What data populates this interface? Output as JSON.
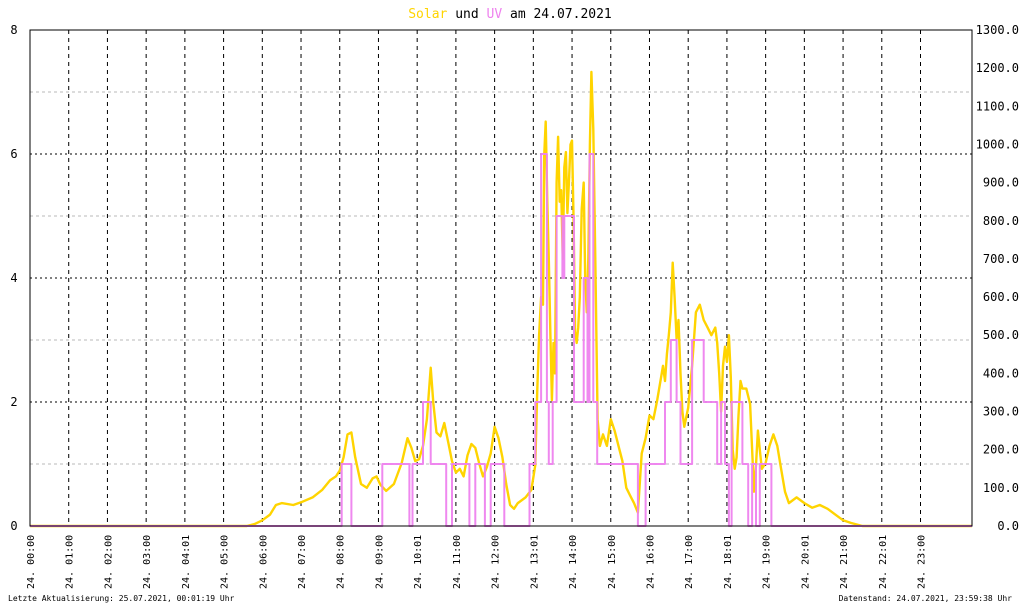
{
  "chart_data": {
    "type": "line",
    "title": {
      "part1": "Solar",
      "part2": " und ",
      "part3": "UV",
      "part4": " am 24.07.2021"
    },
    "colors": {
      "solar": "#ffd400",
      "uv": "#ee82ee",
      "grid_major": "#000000",
      "grid_minor": "#b8b8b8",
      "frame": "#000000"
    },
    "left_axis": {
      "min": 0,
      "max": 8,
      "ticks": [
        "0",
        "2",
        "4",
        "6",
        "8"
      ],
      "minor_step": 1
    },
    "right_axis": {
      "min": 0,
      "max": 1300,
      "ticks": [
        "0.0",
        "100.0",
        "200.0",
        "300.0",
        "400.0",
        "500.0",
        "600.0",
        "700.0",
        "800.0",
        "900.0",
        "1000.0",
        "1100.0",
        "1200.0",
        "1300.0"
      ]
    },
    "x_range_hours": [
      0,
      24.33
    ],
    "x_ticks": [
      {
        "h": 0,
        "label": "24. 00:00"
      },
      {
        "h": 1,
        "label": "24. 01:00"
      },
      {
        "h": 2,
        "label": "24. 02:00"
      },
      {
        "h": 3,
        "label": "24. 03:00"
      },
      {
        "h": 4,
        "label": "24. 04:01"
      },
      {
        "h": 5,
        "label": "24. 05:00"
      },
      {
        "h": 6,
        "label": "24. 06:00"
      },
      {
        "h": 7,
        "label": "24. 07:00"
      },
      {
        "h": 8,
        "label": "24. 08:00"
      },
      {
        "h": 9,
        "label": "24. 09:00"
      },
      {
        "h": 10,
        "label": "24. 10:01"
      },
      {
        "h": 11,
        "label": "24. 11:00"
      },
      {
        "h": 12,
        "label": "24. 12:00"
      },
      {
        "h": 13,
        "label": "24. 13:01"
      },
      {
        "h": 14,
        "label": "24. 14:00"
      },
      {
        "h": 15,
        "label": "24. 15:00"
      },
      {
        "h": 16,
        "label": "24. 16:00"
      },
      {
        "h": 17,
        "label": "24. 17:00"
      },
      {
        "h": 18,
        "label": "24. 18:01"
      },
      {
        "h": 19,
        "label": "24. 19:00"
      },
      {
        "h": 20,
        "label": "24. 20:01"
      },
      {
        "h": 21,
        "label": "24. 21:00"
      },
      {
        "h": 22,
        "label": "24. 22:01"
      },
      {
        "h": 23,
        "label": "24. 23:00"
      }
    ],
    "series": [
      {
        "name": "Solar",
        "axis": "right",
        "points": [
          [
            0,
            0
          ],
          [
            5.6,
            0
          ],
          [
            5.8,
            5
          ],
          [
            6.0,
            15
          ],
          [
            6.2,
            30
          ],
          [
            6.35,
            55
          ],
          [
            6.5,
            60
          ],
          [
            6.8,
            55
          ],
          [
            7.0,
            62
          ],
          [
            7.3,
            75
          ],
          [
            7.55,
            95
          ],
          [
            7.75,
            120
          ],
          [
            7.9,
            130
          ],
          [
            8.0,
            145
          ],
          [
            8.1,
            180
          ],
          [
            8.2,
            240
          ],
          [
            8.3,
            245
          ],
          [
            8.4,
            180
          ],
          [
            8.55,
            110
          ],
          [
            8.7,
            100
          ],
          [
            8.85,
            125
          ],
          [
            8.95,
            130
          ],
          [
            9.05,
            108
          ],
          [
            9.2,
            92
          ],
          [
            9.4,
            110
          ],
          [
            9.6,
            165
          ],
          [
            9.75,
            230
          ],
          [
            9.85,
            205
          ],
          [
            9.95,
            170
          ],
          [
            10.05,
            175
          ],
          [
            10.15,
            210
          ],
          [
            10.25,
            280
          ],
          [
            10.35,
            415
          ],
          [
            10.42,
            320
          ],
          [
            10.5,
            245
          ],
          [
            10.6,
            235
          ],
          [
            10.7,
            270
          ],
          [
            10.8,
            220
          ],
          [
            10.9,
            170
          ],
          [
            11.0,
            140
          ],
          [
            11.1,
            150
          ],
          [
            11.2,
            130
          ],
          [
            11.3,
            185
          ],
          [
            11.4,
            215
          ],
          [
            11.5,
            205
          ],
          [
            11.6,
            165
          ],
          [
            11.7,
            130
          ],
          [
            11.8,
            155
          ],
          [
            11.9,
            190
          ],
          [
            12.0,
            260
          ],
          [
            12.1,
            230
          ],
          [
            12.2,
            180
          ],
          [
            12.3,
            110
          ],
          [
            12.4,
            55
          ],
          [
            12.5,
            45
          ],
          [
            12.6,
            60
          ],
          [
            12.8,
            75
          ],
          [
            12.95,
            95
          ],
          [
            13.05,
            160
          ],
          [
            13.1,
            350
          ],
          [
            13.15,
            500
          ],
          [
            13.2,
            600
          ],
          [
            13.25,
            580
          ],
          [
            13.28,
            970
          ],
          [
            13.32,
            1060
          ],
          [
            13.36,
            850
          ],
          [
            13.4,
            700
          ],
          [
            13.44,
            500
          ],
          [
            13.48,
            330
          ],
          [
            13.52,
            480
          ],
          [
            13.56,
            400
          ],
          [
            13.6,
            900
          ],
          [
            13.64,
            1020
          ],
          [
            13.68,
            850
          ],
          [
            13.72,
            880
          ],
          [
            13.76,
            700
          ],
          [
            13.8,
            940
          ],
          [
            13.84,
            980
          ],
          [
            13.88,
            820
          ],
          [
            13.92,
            900
          ],
          [
            13.96,
            1000
          ],
          [
            14.0,
            1010
          ],
          [
            14.04,
            800
          ],
          [
            14.08,
            510
          ],
          [
            14.12,
            480
          ],
          [
            14.16,
            520
          ],
          [
            14.2,
            600
          ],
          [
            14.25,
            830
          ],
          [
            14.3,
            900
          ],
          [
            14.34,
            650
          ],
          [
            14.38,
            560
          ],
          [
            14.42,
            700
          ],
          [
            14.46,
            1000
          ],
          [
            14.5,
            1190
          ],
          [
            14.55,
            1040
          ],
          [
            14.6,
            700
          ],
          [
            14.66,
            280
          ],
          [
            14.72,
            210
          ],
          [
            14.8,
            240
          ],
          [
            14.9,
            210
          ],
          [
            15.0,
            280
          ],
          [
            15.1,
            250
          ],
          [
            15.2,
            210
          ],
          [
            15.3,
            170
          ],
          [
            15.4,
            100
          ],
          [
            15.5,
            80
          ],
          [
            15.6,
            60
          ],
          [
            15.7,
            35
          ],
          [
            15.8,
            190
          ],
          [
            15.9,
            230
          ],
          [
            16.0,
            290
          ],
          [
            16.1,
            280
          ],
          [
            16.2,
            330
          ],
          [
            16.3,
            390
          ],
          [
            16.35,
            420
          ],
          [
            16.4,
            380
          ],
          [
            16.45,
            450
          ],
          [
            16.5,
            500
          ],
          [
            16.55,
            560
          ],
          [
            16.6,
            690
          ],
          [
            16.65,
            600
          ],
          [
            16.7,
            490
          ],
          [
            16.75,
            540
          ],
          [
            16.8,
            400
          ],
          [
            16.85,
            300
          ],
          [
            16.9,
            260
          ],
          [
            17.0,
            310
          ],
          [
            17.1,
            420
          ],
          [
            17.2,
            560
          ],
          [
            17.3,
            580
          ],
          [
            17.4,
            540
          ],
          [
            17.5,
            520
          ],
          [
            17.6,
            500
          ],
          [
            17.7,
            520
          ],
          [
            17.75,
            480
          ],
          [
            17.8,
            400
          ],
          [
            17.85,
            300
          ],
          [
            17.9,
            420
          ],
          [
            17.95,
            470
          ],
          [
            18.0,
            430
          ],
          [
            18.05,
            500
          ],
          [
            18.1,
            390
          ],
          [
            18.15,
            200
          ],
          [
            18.2,
            150
          ],
          [
            18.25,
            180
          ],
          [
            18.3,
            290
          ],
          [
            18.35,
            380
          ],
          [
            18.4,
            360
          ],
          [
            18.5,
            360
          ],
          [
            18.6,
            320
          ],
          [
            18.7,
            90
          ],
          [
            18.75,
            160
          ],
          [
            18.8,
            250
          ],
          [
            18.85,
            200
          ],
          [
            18.9,
            150
          ],
          [
            19.0,
            165
          ],
          [
            19.1,
            210
          ],
          [
            19.2,
            240
          ],
          [
            19.3,
            210
          ],
          [
            19.4,
            150
          ],
          [
            19.5,
            90
          ],
          [
            19.6,
            60
          ],
          [
            19.8,
            75
          ],
          [
            20.0,
            60
          ],
          [
            20.2,
            48
          ],
          [
            20.4,
            55
          ],
          [
            20.6,
            45
          ],
          [
            20.8,
            30
          ],
          [
            21.0,
            15
          ],
          [
            21.2,
            8
          ],
          [
            21.5,
            0
          ],
          [
            24.33,
            0
          ]
        ]
      },
      {
        "name": "UV",
        "axis": "left",
        "points": [
          [
            0,
            0
          ],
          [
            8.05,
            0
          ],
          [
            8.05,
            1
          ],
          [
            8.3,
            1
          ],
          [
            8.3,
            0
          ],
          [
            9.1,
            0
          ],
          [
            9.1,
            1
          ],
          [
            9.8,
            1
          ],
          [
            9.8,
            0
          ],
          [
            9.88,
            0
          ],
          [
            9.88,
            1
          ],
          [
            10.15,
            1
          ],
          [
            10.15,
            2
          ],
          [
            10.35,
            2
          ],
          [
            10.35,
            1
          ],
          [
            10.75,
            1
          ],
          [
            10.75,
            0
          ],
          [
            10.9,
            0
          ],
          [
            10.9,
            1
          ],
          [
            11.35,
            1
          ],
          [
            11.35,
            0
          ],
          [
            11.5,
            0
          ],
          [
            11.5,
            1
          ],
          [
            11.75,
            1
          ],
          [
            11.75,
            0
          ],
          [
            11.9,
            0
          ],
          [
            11.9,
            1
          ],
          [
            12.25,
            1
          ],
          [
            12.25,
            0
          ],
          [
            12.9,
            0
          ],
          [
            12.9,
            1
          ],
          [
            13.05,
            1
          ],
          [
            13.05,
            2
          ],
          [
            13.2,
            2
          ],
          [
            13.2,
            6
          ],
          [
            13.35,
            6
          ],
          [
            13.35,
            2
          ],
          [
            13.4,
            2
          ],
          [
            13.4,
            1
          ],
          [
            13.5,
            1
          ],
          [
            13.5,
            2
          ],
          [
            13.6,
            2
          ],
          [
            13.6,
            5
          ],
          [
            13.75,
            5
          ],
          [
            13.75,
            4
          ],
          [
            13.8,
            4
          ],
          [
            13.8,
            5
          ],
          [
            14.05,
            5
          ],
          [
            14.05,
            2
          ],
          [
            14.3,
            2
          ],
          [
            14.3,
            4
          ],
          [
            14.4,
            4
          ],
          [
            14.4,
            2
          ],
          [
            14.45,
            2
          ],
          [
            14.45,
            6
          ],
          [
            14.55,
            6
          ],
          [
            14.55,
            2
          ],
          [
            14.65,
            2
          ],
          [
            14.65,
            1
          ],
          [
            15.7,
            1
          ],
          [
            15.7,
            0
          ],
          [
            15.9,
            0
          ],
          [
            15.9,
            1
          ],
          [
            16.4,
            1
          ],
          [
            16.4,
            2
          ],
          [
            16.55,
            2
          ],
          [
            16.55,
            3
          ],
          [
            16.7,
            3
          ],
          [
            16.7,
            2
          ],
          [
            16.8,
            2
          ],
          [
            16.8,
            1
          ],
          [
            17.1,
            1
          ],
          [
            17.1,
            3
          ],
          [
            17.4,
            3
          ],
          [
            17.4,
            2
          ],
          [
            17.75,
            2
          ],
          [
            17.75,
            1
          ],
          [
            17.85,
            1
          ],
          [
            17.85,
            2
          ],
          [
            17.95,
            2
          ],
          [
            17.95,
            1
          ],
          [
            18.05,
            1
          ],
          [
            18.05,
            0
          ],
          [
            18.12,
            0
          ],
          [
            18.12,
            2
          ],
          [
            18.4,
            2
          ],
          [
            18.4,
            1
          ],
          [
            18.55,
            1
          ],
          [
            18.55,
            0
          ],
          [
            18.65,
            0
          ],
          [
            18.65,
            1
          ],
          [
            18.75,
            1
          ],
          [
            18.75,
            0
          ],
          [
            18.85,
            0
          ],
          [
            18.85,
            1
          ],
          [
            19.15,
            1
          ],
          [
            19.15,
            0
          ],
          [
            24.33,
            0
          ]
        ]
      }
    ]
  },
  "footer": {
    "left": "Letzte Aktualisierung: 25.07.2021, 00:01:19 Uhr",
    "right": "Datenstand: 24.07.2021, 23:59:38 Uhr"
  }
}
